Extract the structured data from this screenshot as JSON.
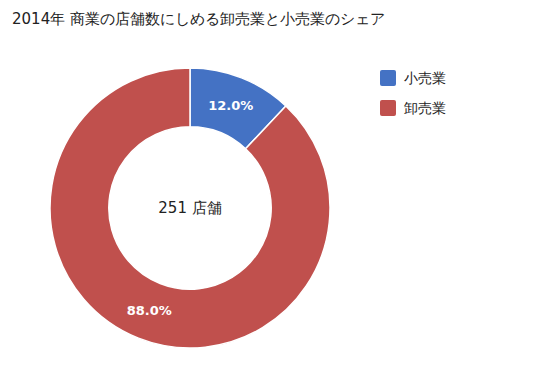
{
  "chart_data": {
    "type": "pie",
    "title": "2014年 商業の店舗数にしめる卸売業と小売業のシェア",
    "categories": [
      "小売業",
      "卸売業"
    ],
    "values": [
      12.0,
      88.0
    ],
    "value_labels": [
      "12.0%",
      "88.0%"
    ],
    "colors": [
      "#4472C4",
      "#C0504D"
    ],
    "annotation": "251 店舗",
    "data_labels": true,
    "legend": "right"
  }
}
